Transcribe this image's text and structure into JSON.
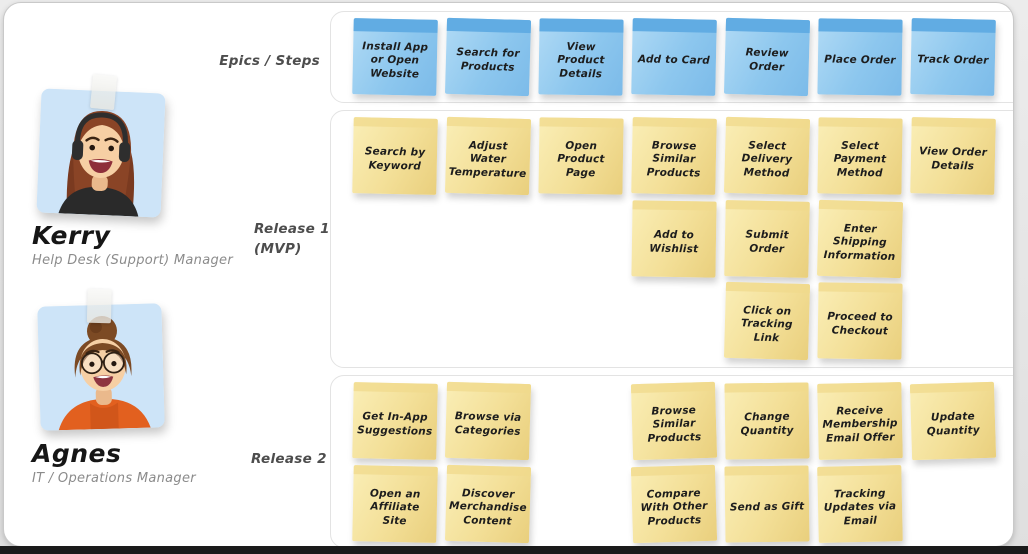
{
  "personas": [
    {
      "name": "Kerry",
      "role": "Help Desk (Support) Manager"
    },
    {
      "name": "Agnes",
      "role": "IT / Operations Manager"
    }
  ],
  "board": {
    "row_labels": [
      {
        "id": "epics",
        "label": "Epics / Steps"
      },
      {
        "id": "release1",
        "label": "Release 1",
        "sublabel": "(MVP)"
      },
      {
        "id": "release2",
        "label": "Release 2"
      }
    ],
    "epics": [
      {
        "col": 1,
        "row": 1,
        "text": "Install App or Open Website"
      },
      {
        "col": 2,
        "row": 1,
        "text": "Search for Products"
      },
      {
        "col": 3,
        "row": 1,
        "text": "View Product Details"
      },
      {
        "col": 4,
        "row": 1,
        "text": "Add to Card"
      },
      {
        "col": 5,
        "row": 1,
        "text": "Review Order"
      },
      {
        "col": 6,
        "row": 1,
        "text": "Place Order"
      },
      {
        "col": 7,
        "row": 1,
        "text": "Track Order"
      }
    ],
    "release1": [
      {
        "col": 1,
        "row": 1,
        "text": "Search by Keyword"
      },
      {
        "col": 2,
        "row": 1,
        "text": "Adjust Water Temperature"
      },
      {
        "col": 3,
        "row": 1,
        "text": "Open Product Page"
      },
      {
        "col": 4,
        "row": 1,
        "text": "Browse Similar Products"
      },
      {
        "col": 5,
        "row": 1,
        "text": "Select Delivery Method"
      },
      {
        "col": 6,
        "row": 1,
        "text": "Select Payment Method"
      },
      {
        "col": 7,
        "row": 1,
        "text": "View Order Details"
      },
      {
        "col": 4,
        "row": 2,
        "text": "Add to Wishlist"
      },
      {
        "col": 5,
        "row": 2,
        "text": "Submit Order"
      },
      {
        "col": 6,
        "row": 2,
        "text": "Enter Shipping Information"
      },
      {
        "col": 5,
        "row": 3,
        "text": "Click on Tracking Link"
      },
      {
        "col": 6,
        "row": 3,
        "text": "Proceed to Checkout"
      }
    ],
    "release2": [
      {
        "col": 1,
        "row": 1,
        "text": "Get In-App Suggestions"
      },
      {
        "col": 2,
        "row": 1,
        "text": "Browse via Categories"
      },
      {
        "col": 4,
        "row": 1,
        "text": "Browse Similar Products"
      },
      {
        "col": 5,
        "row": 1,
        "text": "Change Quantity"
      },
      {
        "col": 6,
        "row": 1,
        "text": "Receive Membership Email Offer"
      },
      {
        "col": 7,
        "row": 1,
        "text": "Update Quantity"
      },
      {
        "col": 1,
        "row": 2,
        "text": "Open an Affiliate Site"
      },
      {
        "col": 2,
        "row": 2,
        "text": "Discover Merchandise Content"
      },
      {
        "col": 4,
        "row": 2,
        "text": "Compare With Other Products"
      },
      {
        "col": 5,
        "row": 2,
        "text": "Send as Gift"
      },
      {
        "col": 6,
        "row": 2,
        "text": "Tracking Updates via Email"
      }
    ]
  },
  "colors": {
    "epic_note_strip": "#61ace3",
    "epic_note_body": "#8dc7ee",
    "story_note_strip": "#f0da8c",
    "story_note_body": "#f3df97",
    "canvas": "#ffffff",
    "bottom_bar": "#1b1b1b"
  }
}
